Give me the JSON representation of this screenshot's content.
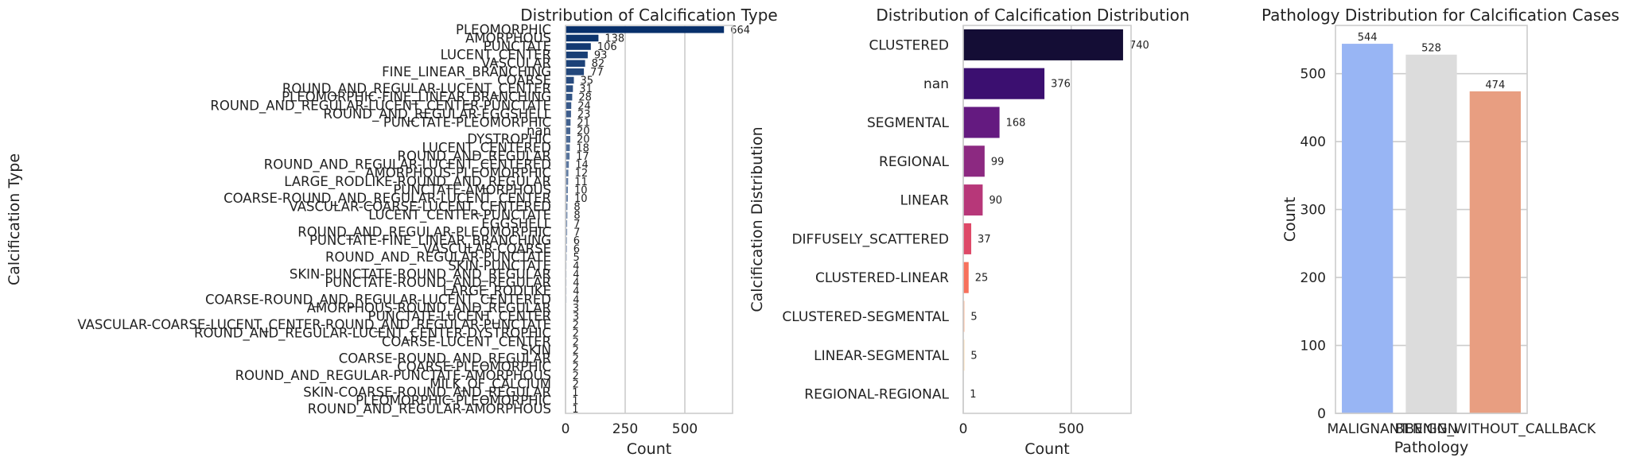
{
  "chart_data": [
    {
      "type": "bar",
      "orientation": "horizontal",
      "title": "Distribution of Calcification Type",
      "xlabel": "Count",
      "ylabel": "Calcification Type",
      "xlim": [
        0,
        700
      ],
      "xticks": [
        0,
        250,
        500
      ],
      "grid": true,
      "palette": [
        "#08306b",
        "#f7fbff"
      ],
      "categories": [
        "PLEOMORPHIC",
        "AMORPHOUS",
        "PUNCTATE",
        "LUCENT_CENTER",
        "VASCULAR",
        "FINE_LINEAR_BRANCHING",
        "COARSE",
        "ROUND_AND_REGULAR-LUCENT_CENTER",
        "PLEOMORPHIC-FINE_LINEAR_BRANCHING",
        "ROUND_AND_REGULAR-LUCENT_CENTER-PUNCTATE",
        "ROUND_AND_REGULAR-EGGSHELL",
        "PUNCTATE-PLEOMORPHIC",
        "nan",
        "DYSTROPHIC",
        "LUCENT_CENTERED",
        "ROUND_AND_REGULAR",
        "ROUND_AND_REGULAR-LUCENT_CENTERED",
        "AMORPHOUS-PLEOMORPHIC",
        "LARGE_RODLIKE-ROUND_AND_REGULAR",
        "PUNCTATE-AMORPHOUS",
        "COARSE-ROUND_AND_REGULAR-LUCENT_CENTER",
        "VASCULAR-COARSE-LUCENT_CENTERED",
        "LUCENT_CENTER-PUNCTATE",
        "EGGSHELL",
        "ROUND_AND_REGULAR-PLEOMORPHIC",
        "PUNCTATE-FINE_LINEAR_BRANCHING",
        "VASCULAR-COARSE",
        "ROUND_AND_REGULAR-PUNCTATE",
        "SKIN-PUNCTATE",
        "SKIN-PUNCTATE-ROUND_AND_REGULAR",
        "PUNCTATE-ROUND_AND_REGULAR",
        "LARGE_RODLIKE",
        "COARSE-ROUND_AND_REGULAR-LUCENT_CENTERED",
        "AMORPHOUS-ROUND_AND_REGULAR",
        "PUNCTATE-LUCENT_CENTER",
        "VASCULAR-COARSE-LUCENT_CENTER-ROUND_AND_REGULAR-PUNCTATE",
        "ROUND_AND_REGULAR-LUCENT_CENTER-DYSTROPHIC",
        "COARSE-LUCENT_CENTER",
        "SKIN",
        "COARSE-ROUND_AND_REGULAR",
        "COARSE-PLEOMORPHIC",
        "ROUND_AND_REGULAR-PUNCTATE-AMORPHOUS",
        "MILK_OF_CALCIUM",
        "SKIN-COARSE-ROUND_AND_REGULAR",
        "PLEOMORPHIC-PLEOMORPHIC",
        "ROUND_AND_REGULAR-AMORPHOUS"
      ],
      "values": [
        664,
        138,
        106,
        93,
        82,
        77,
        35,
        31,
        28,
        24,
        23,
        21,
        20,
        20,
        18,
        17,
        14,
        12,
        11,
        10,
        10,
        8,
        8,
        7,
        7,
        6,
        6,
        5,
        4,
        4,
        4,
        4,
        4,
        3,
        3,
        2,
        2,
        2,
        2,
        2,
        2,
        2,
        2,
        1,
        1,
        1
      ]
    },
    {
      "type": "bar",
      "orientation": "horizontal",
      "title": "Distribution of Calcification Distribution",
      "xlabel": "Count",
      "ylabel": "Calcification Distribution",
      "xlim": [
        0,
        777
      ],
      "xticks": [
        0,
        500
      ],
      "grid": true,
      "categories": [
        "CLUSTERED",
        "nan",
        "SEGMENTAL",
        "REGIONAL",
        "LINEAR",
        "DIFFUSELY_SCATTERED",
        "CLUSTERED-LINEAR",
        "CLUSTERED-SEGMENTAL",
        "LINEAR-SEGMENTAL",
        "REGIONAL-REGIONAL"
      ],
      "values": [
        740,
        376,
        168,
        99,
        90,
        37,
        25,
        5,
        5,
        1
      ],
      "colors": [
        "#140d35",
        "#3b0f70",
        "#641a80",
        "#8c2981",
        "#b73779",
        "#de4968",
        "#f7705c",
        "#fe9f6d",
        "#fecf92",
        "#fcfdbf"
      ]
    },
    {
      "type": "bar",
      "orientation": "vertical",
      "title": "Pathology Distribution for Calcification Cases",
      "xlabel": "Pathology",
      "ylabel": "Count",
      "ylim": [
        0,
        571
      ],
      "yticks": [
        0,
        100,
        200,
        300,
        400,
        500
      ],
      "grid": true,
      "categories": [
        "MALIGNANT",
        "BENIGN",
        "BENIGN_WITHOUT_CALLBACK"
      ],
      "values": [
        544,
        528,
        474
      ],
      "colors": [
        "#98b5f4",
        "#dcdcdc",
        "#e89e81"
      ]
    }
  ]
}
